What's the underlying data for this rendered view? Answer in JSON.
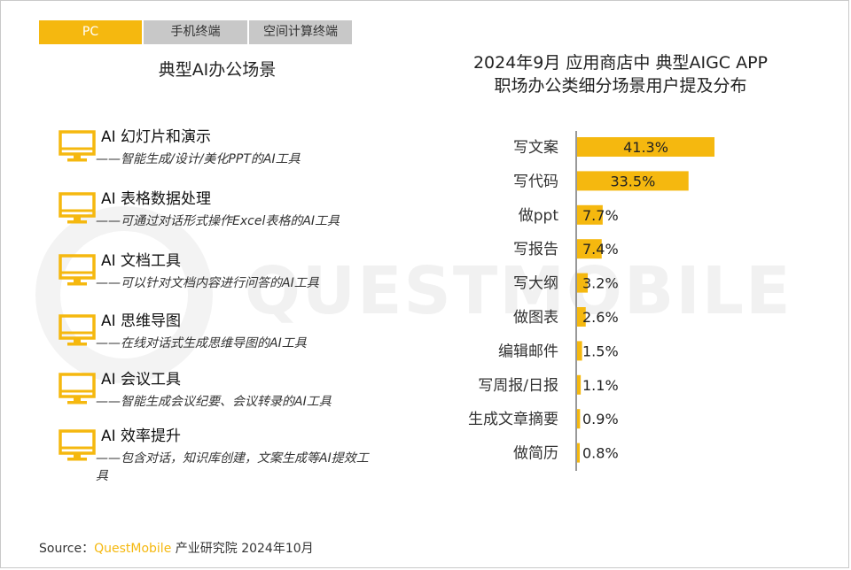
{
  "tabs": [
    {
      "label": "PC",
      "active": true
    },
    {
      "label": "手机终端",
      "active": false
    },
    {
      "label": "空间计算终端",
      "active": false
    }
  ],
  "left": {
    "title": "典型AI办公场景",
    "scenes": [
      {
        "name": "AI 幻灯片和演示",
        "desc": "——智能生成/设计/美化PPT的AI工具",
        "icon": "monitor-icon"
      },
      {
        "name": "AI 表格数据处理",
        "desc": "——可通过对话形式操作Excel表格的AI工具",
        "icon": "monitor-icon"
      },
      {
        "name": "AI 文档工具",
        "desc": "——可以针对文档内容进行问答的AI工具",
        "icon": "monitor-icon"
      },
      {
        "name": "AI 思维导图",
        "desc": "——在线对话式生成思维导图的AI工具",
        "icon": "monitor-icon"
      },
      {
        "name": "AI 会议工具",
        "desc": "——智能生成会议纪要、会议转录的AI工具",
        "icon": "monitor-icon"
      },
      {
        "name": "AI 效率提升",
        "desc": "——包含对话，知识库创建，文案生成等AI提效工具",
        "icon": "monitor-icon"
      }
    ]
  },
  "chart_title_line1": "2024年9月 应用商店中 典型AIGC APP",
  "chart_title_line2": "职场办公类细分场景用户提及分布",
  "chart_data": {
    "type": "bar",
    "orientation": "horizontal",
    "title": "2024年9月 应用商店中 典型AIGC APP 职场办公类细分场景用户提及分布",
    "categories": [
      "写文案",
      "写代码",
      "做ppt",
      "写报告",
      "写大纲",
      "做图表",
      "编辑邮件",
      "写周报/日报",
      "生成文章摘要",
      "做简历"
    ],
    "values": [
      41.3,
      33.5,
      7.7,
      7.4,
      3.2,
      2.6,
      1.5,
      1.1,
      0.9,
      0.8
    ],
    "value_labels": [
      "41.3%",
      "33.5%",
      "7.7%",
      "7.4%",
      "3.2%",
      "2.6%",
      "1.5%",
      "1.1%",
      "0.9%",
      "0.8%"
    ],
    "xlim": [
      0,
      50
    ],
    "grid": false,
    "bar_color": "#f5b80f"
  },
  "source": {
    "prefix": "Source：",
    "brand": "QuestMobile",
    "suffix": " 产业研究院 2024年10月"
  },
  "watermark": "QUESTMOBILE",
  "colors": {
    "accent": "#f5b80f",
    "tab_inactive": "#c8c8c8"
  }
}
